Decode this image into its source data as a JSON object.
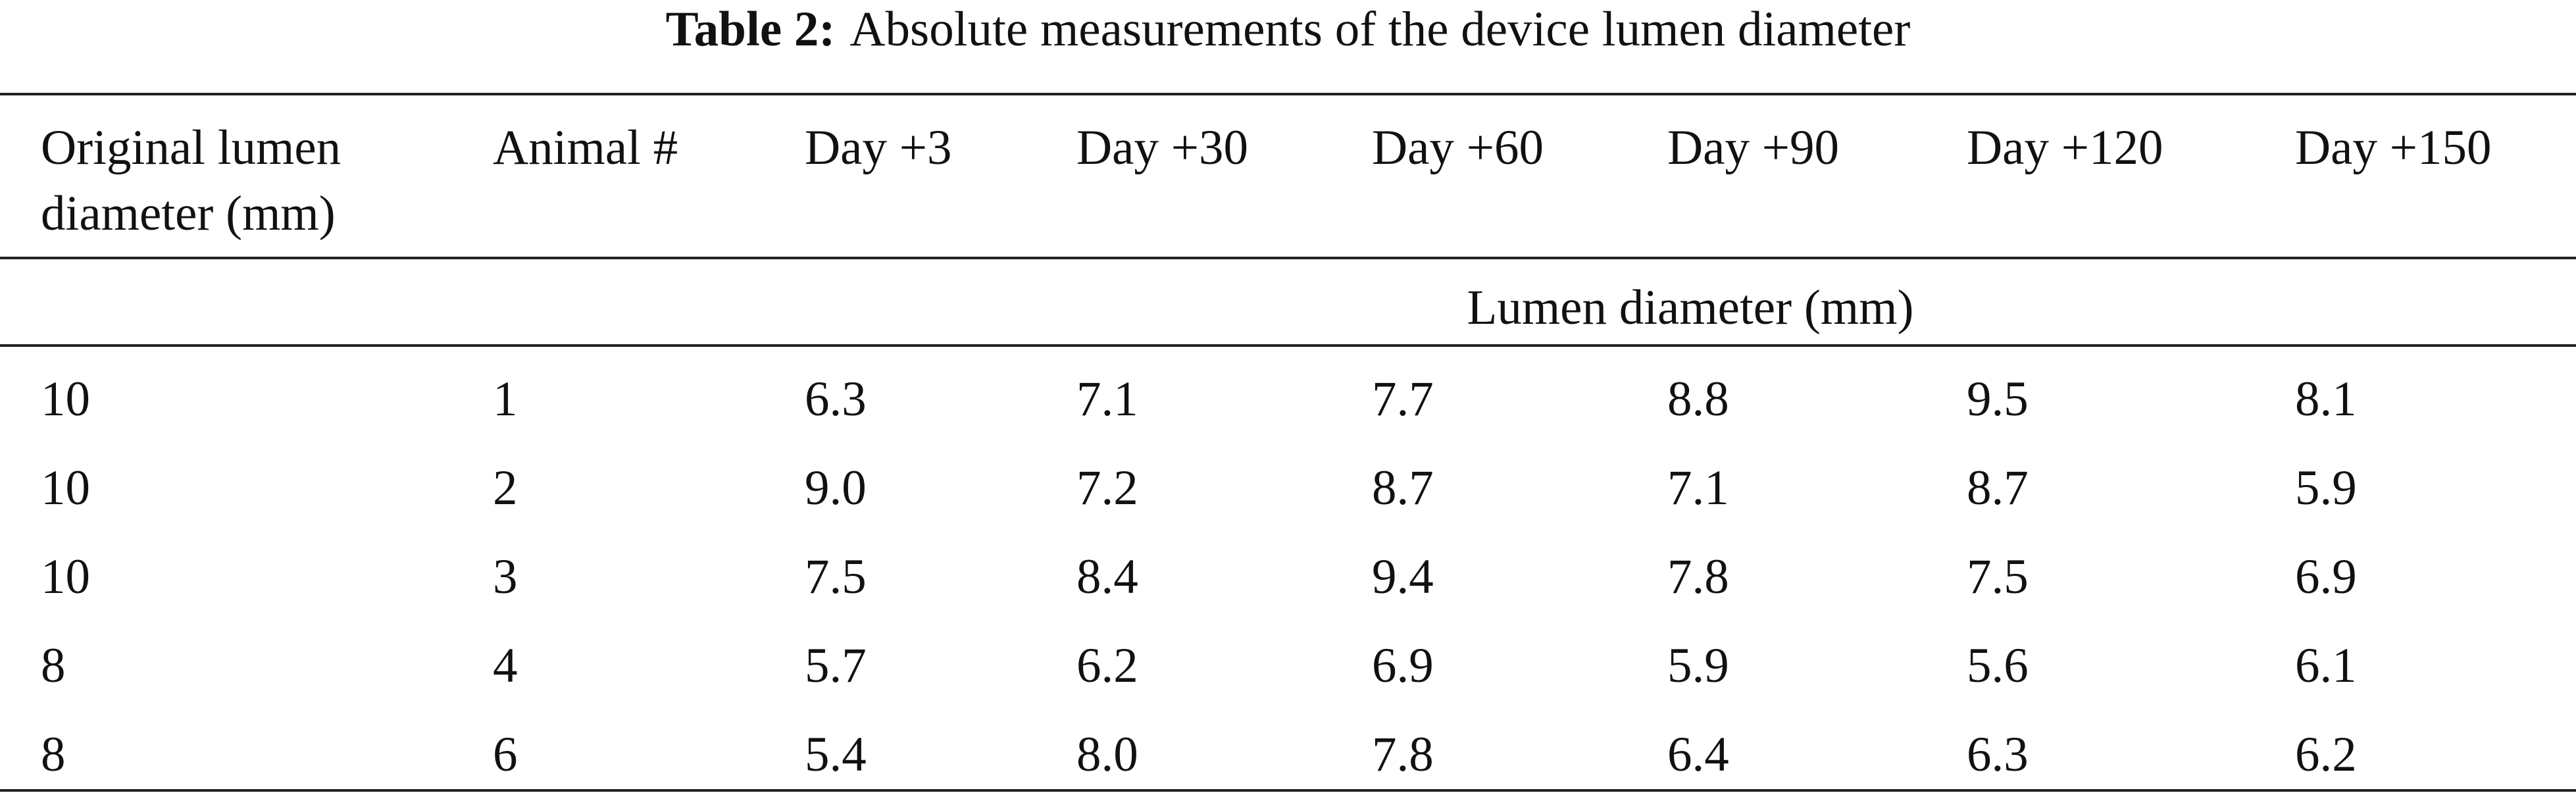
{
  "title": {
    "label": "Table 2:",
    "text": "Absolute measurements of the device lumen diameter"
  },
  "table": {
    "header": [
      "Original lumen diameter (mm)",
      "Animal #",
      "Day +3",
      "Day +30",
      "Day +60",
      "Day +90",
      "Day +120",
      "Day +150"
    ],
    "subheader": "Lumen diameter (mm)",
    "rows": [
      [
        "10",
        "1",
        "6.3",
        "7.1",
        "7.7",
        "8.8",
        "9.5",
        "8.1"
      ],
      [
        "10",
        "2",
        "9.0",
        "7.2",
        "8.7",
        "7.1",
        "8.7",
        "5.9"
      ],
      [
        "10",
        "3",
        "7.5",
        "8.4",
        "9.4",
        "7.8",
        "7.5",
        "6.9"
      ],
      [
        "8",
        "4",
        "5.7",
        "6.2",
        "6.9",
        "5.9",
        "5.6",
        "6.1"
      ],
      [
        "8",
        "6",
        "5.4",
        "8.0",
        "7.8",
        "6.4",
        "6.3",
        "6.2"
      ]
    ]
  }
}
